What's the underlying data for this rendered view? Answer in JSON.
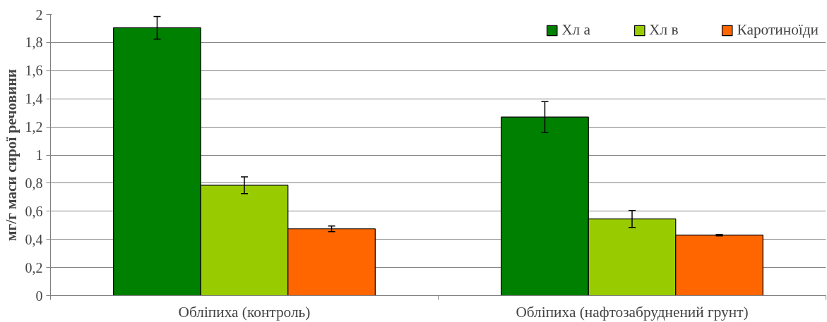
{
  "chart_data": {
    "type": "bar",
    "ylabel": "мг/г маси сирої речовини",
    "categories": [
      "Обліпиха (контроль)",
      "Обліпиха (нафтозабруднений грунт)"
    ],
    "series": [
      {
        "name": "Хл а",
        "color": "#008000",
        "values": [
          1.905,
          1.27
        ],
        "errors": [
          0.08,
          0.11
        ]
      },
      {
        "name": "Хл в",
        "color": "#99cc00",
        "values": [
          0.785,
          0.545
        ],
        "errors": [
          0.06,
          0.06
        ]
      },
      {
        "name": "Каротиноїди",
        "color": "#ff6600",
        "values": [
          0.475,
          0.43
        ],
        "errors": [
          0.02,
          0.005
        ]
      }
    ],
    "ylim": [
      0,
      2
    ],
    "yticks": [
      0,
      {
        "value": 0.2,
        "label": "0,2"
      },
      {
        "value": 0.4,
        "label": "0,4"
      },
      {
        "value": 0.6,
        "label": "0,6"
      },
      {
        "value": 0.8,
        "label": "0,8"
      },
      1,
      {
        "value": 1.2,
        "label": "1,2"
      },
      {
        "value": 1.4,
        "label": "1,4"
      },
      {
        "value": 1.6,
        "label": "1,6"
      },
      {
        "value": 1.8,
        "label": "1,8"
      },
      2
    ],
    "grid": "y",
    "legend": "top right"
  }
}
